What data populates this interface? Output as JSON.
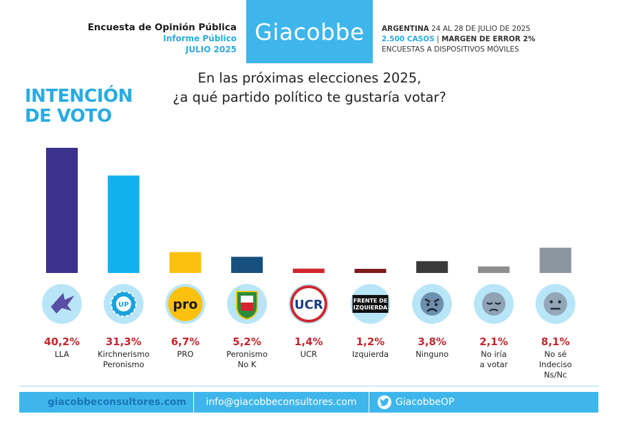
{
  "header": {
    "survey_title": "Encuesta de Opinión Pública",
    "report_type": "Informe Público",
    "month": "JULIO 2025",
    "brand": "Giacobbe",
    "country": "ARGENTINA",
    "dates": "24 AL 28 DE JULIO DE 2025",
    "cases": "2.500 CASOS",
    "sep": " | ",
    "margin": "MARGEN DE ERROR 2%",
    "method": "ENCUESTAS A DISPOSITIVOS MÓVILES"
  },
  "footer": {
    "website": "giacobbeconsultores.com",
    "email": "info@giacobbeconsultores.com",
    "twitter": "GiacobbeOP"
  },
  "chart_data": {
    "type": "bar",
    "title_lines": [
      "INTENCIÓN",
      "DE VOTO"
    ],
    "question_lines": [
      "En las próximas elecciones 2025,",
      "¿a qué partido político te gustaría votar?"
    ],
    "ylim": [
      0,
      40.2
    ],
    "categories": [
      {
        "label": [
          "LLA"
        ],
        "value": 40.2,
        "value_label": "40,2%",
        "color": "#3c318d",
        "icon": "lla-eagle-icon",
        "icon_text": ""
      },
      {
        "label": [
          "Kirchnerismo",
          "Peronismo"
        ],
        "value": 31.3,
        "value_label": "31,3%",
        "color": "#0fb2ec",
        "icon": "up-sun-icon",
        "icon_text": "UP"
      },
      {
        "label": [
          "PRO"
        ],
        "value": 6.7,
        "value_label": "6,7%",
        "color": "#fcc10f",
        "icon": "pro-logo-icon",
        "icon_text": "pro"
      },
      {
        "label": [
          "Peronismo",
          "No K"
        ],
        "value": 5.2,
        "value_label": "5,2%",
        "color": "#16507e",
        "icon": "peronist-shield-icon",
        "icon_text": ""
      },
      {
        "label": [
          "UCR"
        ],
        "value": 1.4,
        "value_label": "1,4%",
        "color": "#d2262e",
        "icon": "ucr-logo-icon",
        "icon_text": "UCR"
      },
      {
        "label": [
          "Izquierda"
        ],
        "value": 1.2,
        "value_label": "1,2%",
        "color": "#7b1a1e",
        "icon": "fit-logo-icon",
        "icon_text": "FRENTE DE IZQUIERDA"
      },
      {
        "label": [
          "Ninguno"
        ],
        "value": 3.8,
        "value_label": "3,8%",
        "color": "#3a3a3a",
        "icon": "angry-face-icon",
        "icon_text": ""
      },
      {
        "label": [
          "No iría",
          "a votar"
        ],
        "value": 2.1,
        "value_label": "2,1%",
        "color": "#8e8e8e",
        "icon": "sad-face-icon",
        "icon_text": ""
      },
      {
        "label": [
          "No sé",
          "Indeciso",
          "Ns/Nc"
        ],
        "value": 8.1,
        "value_label": "8,1%",
        "color": "#8a969f",
        "icon": "neutral-face-icon",
        "icon_text": ""
      }
    ]
  }
}
